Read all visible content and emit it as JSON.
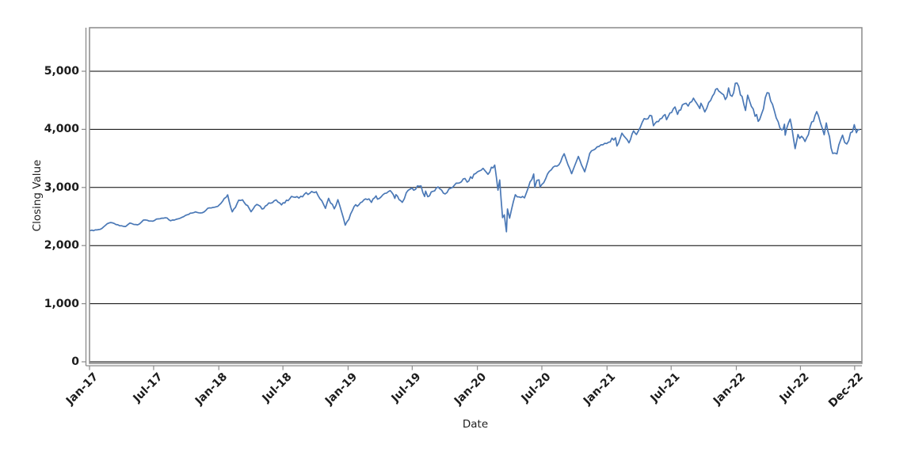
{
  "figure": {
    "background": "#ffffff",
    "plot_border_color": "#8a8a8a",
    "grid_color": "#000000",
    "tick_color": "#8a8a8a",
    "text_color": "#1c1c1c"
  },
  "chart_data": {
    "type": "line",
    "title": "",
    "xlabel": "Date",
    "ylabel": "Closing Value",
    "legend": "none",
    "grid": "horizontal",
    "x_axis": {
      "kind": "date",
      "range": [
        "2017-01-01",
        "2022-12-17"
      ],
      "ticks": [
        {
          "label": "Jan-17",
          "date": "2017-01-01"
        },
        {
          "label": "Jul-17",
          "date": "2017-07-01"
        },
        {
          "label": "Jan-18",
          "date": "2018-01-01"
        },
        {
          "label": "Jul-18",
          "date": "2018-07-01"
        },
        {
          "label": "Jan-19",
          "date": "2019-01-01"
        },
        {
          "label": "Jul-19",
          "date": "2019-07-01"
        },
        {
          "label": "Jan-20",
          "date": "2020-01-01"
        },
        {
          "label": "Jul-20",
          "date": "2020-07-01"
        },
        {
          "label": "Jan-21",
          "date": "2021-01-01"
        },
        {
          "label": "Jul-21",
          "date": "2021-07-01"
        },
        {
          "label": "Jan-22",
          "date": "2022-01-01"
        },
        {
          "label": "Jul-22",
          "date": "2022-07-01"
        },
        {
          "label": "Dec-22",
          "date": "2022-12-01"
        }
      ]
    },
    "y_axis": {
      "range": [
        0,
        5750
      ],
      "ticks": [
        0,
        1000,
        2000,
        3000,
        4000,
        5000
      ],
      "tick_labels": [
        "0",
        "1,000",
        "2,000",
        "3,000",
        "4,000",
        "5,000"
      ],
      "gridlines": true
    },
    "series": [
      {
        "name": "closing-value",
        "color": "#4a78b6",
        "points": [
          [
            "2017-01-03",
            2258
          ],
          [
            "2017-01-31",
            2279
          ],
          [
            "2017-02-15",
            2349
          ],
          [
            "2017-03-01",
            2396
          ],
          [
            "2017-03-27",
            2342
          ],
          [
            "2017-04-13",
            2329
          ],
          [
            "2017-04-25",
            2388
          ],
          [
            "2017-05-17",
            2357
          ],
          [
            "2017-06-02",
            2439
          ],
          [
            "2017-06-29",
            2420
          ],
          [
            "2017-07-14",
            2459
          ],
          [
            "2017-08-08",
            2475
          ],
          [
            "2017-08-18",
            2426
          ],
          [
            "2017-09-08",
            2461
          ],
          [
            "2017-09-29",
            2519
          ],
          [
            "2017-10-27",
            2581
          ],
          [
            "2017-11-15",
            2564
          ],
          [
            "2017-12-01",
            2642
          ],
          [
            "2017-12-29",
            2674
          ],
          [
            "2018-01-26",
            2873
          ],
          [
            "2018-02-08",
            2581
          ],
          [
            "2018-02-26",
            2780
          ],
          [
            "2018-03-09",
            2787
          ],
          [
            "2018-04-02",
            2582
          ],
          [
            "2018-04-18",
            2708
          ],
          [
            "2018-05-03",
            2630
          ],
          [
            "2018-05-22",
            2733
          ],
          [
            "2018-06-12",
            2786
          ],
          [
            "2018-06-27",
            2700
          ],
          [
            "2018-07-25",
            2846
          ],
          [
            "2018-08-15",
            2818
          ],
          [
            "2018-09-20",
            2931
          ],
          [
            "2018-10-03",
            2926
          ],
          [
            "2018-10-29",
            2641
          ],
          [
            "2018-11-07",
            2814
          ],
          [
            "2018-11-23",
            2632
          ],
          [
            "2018-12-03",
            2790
          ],
          [
            "2018-12-24",
            2351
          ],
          [
            "2019-01-03",
            2448
          ],
          [
            "2019-01-18",
            2671
          ],
          [
            "2019-02-05",
            2738
          ],
          [
            "2019-03-01",
            2804
          ],
          [
            "2019-03-08",
            2743
          ],
          [
            "2019-03-21",
            2855
          ],
          [
            "2019-03-25",
            2798
          ],
          [
            "2019-04-30",
            2946
          ],
          [
            "2019-05-13",
            2812
          ],
          [
            "2019-05-16",
            2876
          ],
          [
            "2019-06-03",
            2744
          ],
          [
            "2019-06-20",
            2954
          ],
          [
            "2019-07-26",
            3026
          ],
          [
            "2019-08-05",
            2845
          ],
          [
            "2019-08-08",
            2938
          ],
          [
            "2019-08-14",
            2841
          ],
          [
            "2019-09-12",
            3009
          ],
          [
            "2019-10-02",
            2888
          ],
          [
            "2019-10-28",
            3039
          ],
          [
            "2019-11-27",
            3154
          ],
          [
            "2019-12-03",
            3093
          ],
          [
            "2019-12-27",
            3240
          ],
          [
            "2020-01-17",
            3330
          ],
          [
            "2020-01-31",
            3226
          ],
          [
            "2020-02-19",
            3386
          ],
          [
            "2020-02-28",
            2954
          ],
          [
            "2020-03-04",
            3130
          ],
          [
            "2020-03-12",
            2481
          ],
          [
            "2020-03-17",
            2529
          ],
          [
            "2020-03-23",
            2237
          ],
          [
            "2020-03-26",
            2630
          ],
          [
            "2020-04-01",
            2471
          ],
          [
            "2020-04-17",
            2875
          ],
          [
            "2020-05-13",
            2820
          ],
          [
            "2020-06-08",
            3232
          ],
          [
            "2020-06-11",
            3002
          ],
          [
            "2020-06-23",
            3131
          ],
          [
            "2020-06-26",
            3009
          ],
          [
            "2020-07-22",
            3276
          ],
          [
            "2020-08-18",
            3390
          ],
          [
            "2020-09-02",
            3581
          ],
          [
            "2020-09-23",
            3237
          ],
          [
            "2020-10-12",
            3534
          ],
          [
            "2020-10-30",
            3270
          ],
          [
            "2020-11-13",
            3585
          ],
          [
            "2020-12-04",
            3699
          ],
          [
            "2020-12-31",
            3756
          ],
          [
            "2021-01-25",
            3855
          ],
          [
            "2021-01-29",
            3714
          ],
          [
            "2021-02-12",
            3935
          ],
          [
            "2021-03-04",
            3768
          ],
          [
            "2021-03-17",
            3974
          ],
          [
            "2021-03-25",
            3910
          ],
          [
            "2021-04-16",
            4185
          ],
          [
            "2021-05-07",
            4233
          ],
          [
            "2021-05-12",
            4063
          ],
          [
            "2021-06-14",
            4255
          ],
          [
            "2021-06-18",
            4166
          ],
          [
            "2021-07-12",
            4385
          ],
          [
            "2021-07-19",
            4258
          ],
          [
            "2021-08-06",
            4437
          ],
          [
            "2021-08-18",
            4400
          ],
          [
            "2021-09-02",
            4537
          ],
          [
            "2021-09-20",
            4358
          ],
          [
            "2021-09-23",
            4449
          ],
          [
            "2021-10-04",
            4300
          ],
          [
            "2021-10-26",
            4575
          ],
          [
            "2021-11-08",
            4702
          ],
          [
            "2021-11-26",
            4595
          ],
          [
            "2021-12-01",
            4513
          ],
          [
            "2021-12-10",
            4712
          ],
          [
            "2021-12-20",
            4568
          ],
          [
            "2021-12-29",
            4793
          ],
          [
            "2022-01-03",
            4797
          ],
          [
            "2022-01-27",
            4326
          ],
          [
            "2022-02-02",
            4589
          ],
          [
            "2022-02-23",
            4225
          ],
          [
            "2022-03-08",
            4171
          ],
          [
            "2022-03-29",
            4631
          ],
          [
            "2022-04-08",
            4488
          ],
          [
            "2022-04-29",
            4132
          ],
          [
            "2022-05-09",
            3991
          ],
          [
            "2022-05-17",
            4089
          ],
          [
            "2022-05-19",
            3901
          ],
          [
            "2022-06-02",
            4177
          ],
          [
            "2022-06-16",
            3667
          ],
          [
            "2022-06-24",
            3912
          ],
          [
            "2022-07-14",
            3790
          ],
          [
            "2022-08-16",
            4305
          ],
          [
            "2022-09-06",
            3908
          ],
          [
            "2022-09-12",
            4110
          ],
          [
            "2022-09-30",
            3586
          ],
          [
            "2022-10-12",
            3577
          ],
          [
            "2022-10-28",
            3901
          ],
          [
            "2022-11-09",
            3748
          ],
          [
            "2022-11-30",
            4080
          ],
          [
            "2022-12-06",
            3941
          ],
          [
            "2022-12-14",
            3995
          ]
        ]
      }
    ]
  }
}
